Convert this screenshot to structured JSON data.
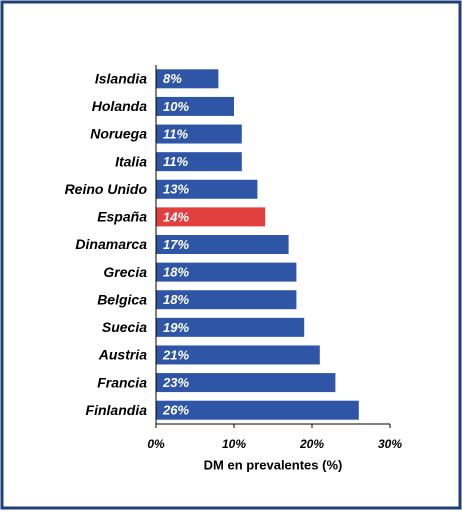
{
  "chart_data": {
    "type": "bar",
    "orientation": "horizontal",
    "x_label": "DM en prevalentes (%)",
    "categories": [
      "Islandia",
      "Holanda",
      "Noruega",
      "Italia",
      "Reino Unido",
      "España",
      "Dinamarca",
      "Grecia",
      "Belgica",
      "Suecia",
      "Austria",
      "Francia",
      "Finlandia"
    ],
    "values": [
      8,
      10,
      11,
      11,
      13,
      14,
      17,
      18,
      18,
      19,
      21,
      23,
      26
    ],
    "value_labels": [
      "8%",
      "10%",
      "11%",
      "11%",
      "13%",
      "14%",
      "17%",
      "18%",
      "18%",
      "19%",
      "21%",
      "23%",
      "26%"
    ],
    "colors": [
      "#2f56a6",
      "#2f56a6",
      "#2f56a6",
      "#2f56a6",
      "#2f56a6",
      "#e2403f",
      "#2f56a6",
      "#2f56a6",
      "#2f56a6",
      "#2f56a6",
      "#2f56a6",
      "#2f56a6",
      "#2f56a6"
    ],
    "xlim": [
      0,
      30
    ],
    "xticks": [
      {
        "value": 0,
        "label": "0%"
      },
      {
        "value": 10,
        "label": "10%"
      },
      {
        "value": 20,
        "label": "20%"
      },
      {
        "value": 30,
        "label": "30%"
      }
    ],
    "grid": false
  }
}
